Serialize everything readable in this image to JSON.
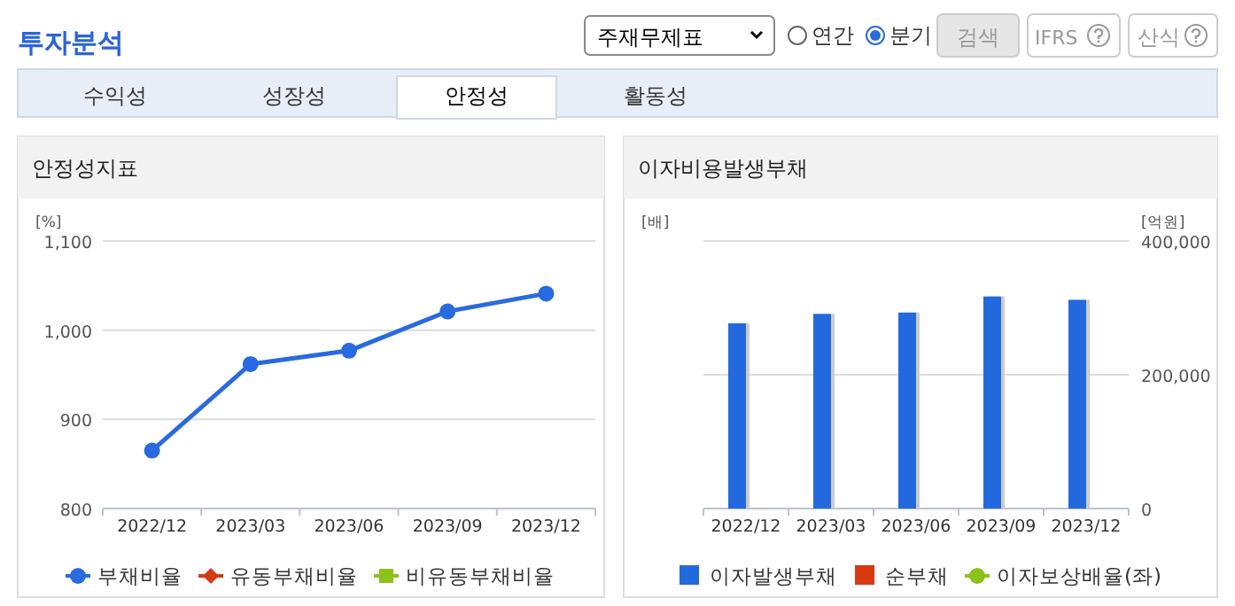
{
  "chart_data": [
    {
      "type": "other",
      "title": "투자분석",
      "annotations": [
        "주재무제표",
        "연간",
        "분기",
        "검색",
        "IFRS",
        "산식",
        "수익성",
        "성장성",
        "안정성",
        "활동성"
      ]
    },
    {
      "type": "line",
      "title": "안정성지표",
      "ylabel": "[%]",
      "categories": [
        "2022/12",
        "2023/03",
        "2023/06",
        "2023/09",
        "2023/12"
      ],
      "ylim": [
        800,
        1100
      ],
      "yticks": [
        {
          "value": 800,
          "label": "800"
        },
        {
          "value": 900,
          "label": "900"
        },
        {
          "value": 1000,
          "label": "1,000"
        },
        {
          "value": 1100,
          "label": "1,100"
        }
      ],
      "grid": "y",
      "legend": "bottom",
      "series": [
        {
          "name": "부채비율",
          "color": "#2a6ae0",
          "marker": "circle",
          "values": [
            865,
            962,
            977,
            1021,
            1041
          ]
        },
        {
          "name": "유동부채비율",
          "color": "#d83a12",
          "marker": "diamond",
          "values": [
            null,
            null,
            null,
            null,
            null
          ]
        },
        {
          "name": "비유동부채비율",
          "color": "#8cc21a",
          "marker": "square",
          "values": [
            null,
            null,
            null,
            null,
            null
          ]
        }
      ]
    },
    {
      "type": "bar",
      "title": "이자비용발생부채",
      "ylabel": "[배]",
      "y2label": "[억원]",
      "categories": [
        "2022/12",
        "2023/03",
        "2023/06",
        "2023/09",
        "2023/12"
      ],
      "y2lim": [
        0,
        400000
      ],
      "y2ticks": [
        {
          "value": 0,
          "label": "0"
        },
        {
          "value": 200000,
          "label": "200,000"
        },
        {
          "value": 400000,
          "label": "400,000"
        }
      ],
      "grid": "y",
      "legend": "bottom",
      "series": [
        {
          "name": "이자발생부채",
          "color": "#2369de",
          "axis": "y2",
          "values": [
            277000,
            291000,
            293000,
            317000,
            312000
          ]
        },
        {
          "name": "순부채",
          "color": "#d83a10",
          "axis": "y2",
          "values": [
            null,
            null,
            null,
            null,
            null
          ]
        },
        {
          "name": "이자보상배율(좌)",
          "color": "#8cc21a",
          "type": "line",
          "marker": "circle",
          "values": [
            null,
            null,
            null,
            null,
            null
          ]
        }
      ]
    }
  ]
}
